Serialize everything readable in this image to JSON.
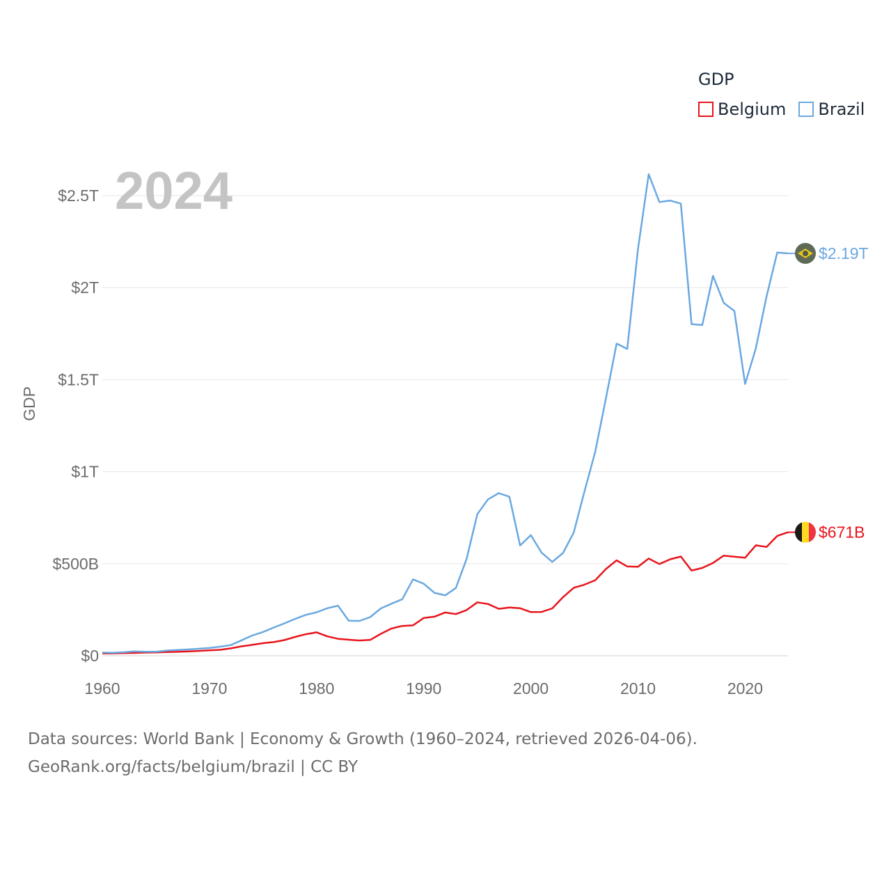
{
  "legend": {
    "title": "GDP",
    "items": [
      "Belgium",
      "Brazil"
    ]
  },
  "sources": {
    "line1": "Data sources: World Bank | Economy & Growth (1960–2024, retrieved 2026-04-06).",
    "line2": "GeoRank.org/facts/belgium/brazil | CC BY"
  },
  "chart_data": {
    "type": "line",
    "title": "",
    "year_label": "2024",
    "xlabel": "",
    "ylabel": "GDP",
    "xlim": [
      1960,
      2024
    ],
    "ylim": [
      0,
      2.5
    ],
    "unit": "trillion USD",
    "x_ticks": [
      1960,
      1970,
      1980,
      1990,
      2000,
      2010,
      2020
    ],
    "y_ticks": [
      {
        "value": 0,
        "label": "$0"
      },
      {
        "value": 0.5,
        "label": "$500B"
      },
      {
        "value": 1,
        "label": "$1T"
      },
      {
        "value": 1.5,
        "label": "$1.5T"
      },
      {
        "value": 2,
        "label": "$2T"
      },
      {
        "value": 2.5,
        "label": "$2.5T"
      }
    ],
    "x": [
      1960,
      1961,
      1962,
      1963,
      1964,
      1965,
      1966,
      1967,
      1968,
      1969,
      1970,
      1971,
      1972,
      1973,
      1974,
      1975,
      1976,
      1977,
      1978,
      1979,
      1980,
      1981,
      1982,
      1983,
      1984,
      1985,
      1986,
      1987,
      1988,
      1989,
      1990,
      1991,
      1992,
      1993,
      1994,
      1995,
      1996,
      1997,
      1998,
      1999,
      2000,
      2001,
      2002,
      2003,
      2004,
      2005,
      2006,
      2007,
      2008,
      2009,
      2010,
      2011,
      2012,
      2013,
      2014,
      2015,
      2016,
      2017,
      2018,
      2019,
      2020,
      2021,
      2022,
      2023,
      2024
    ],
    "series": [
      {
        "name": "Belgium",
        "color": "#e8141b",
        "end_label": "$671B",
        "values": [
          0.012,
          0.013,
          0.014,
          0.015,
          0.017,
          0.018,
          0.02,
          0.021,
          0.023,
          0.026,
          0.029,
          0.032,
          0.04,
          0.051,
          0.059,
          0.068,
          0.074,
          0.085,
          0.102,
          0.117,
          0.127,
          0.105,
          0.092,
          0.087,
          0.083,
          0.086,
          0.119,
          0.148,
          0.162,
          0.165,
          0.205,
          0.212,
          0.235,
          0.226,
          0.248,
          0.29,
          0.281,
          0.255,
          0.262,
          0.258,
          0.237,
          0.238,
          0.257,
          0.318,
          0.369,
          0.386,
          0.41,
          0.471,
          0.518,
          0.485,
          0.483,
          0.528,
          0.498,
          0.524,
          0.539,
          0.463,
          0.477,
          0.504,
          0.544,
          0.538,
          0.532,
          0.6,
          0.591,
          0.651,
          0.671
        ]
      },
      {
        "name": "Brazil",
        "color": "#6aa8e0",
        "end_label": "$2.19T",
        "values": [
          0.017,
          0.016,
          0.019,
          0.024,
          0.022,
          0.022,
          0.028,
          0.031,
          0.034,
          0.038,
          0.042,
          0.049,
          0.058,
          0.084,
          0.11,
          0.129,
          0.153,
          0.176,
          0.2,
          0.222,
          0.236,
          0.258,
          0.272,
          0.19,
          0.189,
          0.21,
          0.257,
          0.283,
          0.307,
          0.415,
          0.391,
          0.342,
          0.328,
          0.368,
          0.526,
          0.769,
          0.85,
          0.883,
          0.864,
          0.599,
          0.655,
          0.56,
          0.51,
          0.558,
          0.669,
          0.892,
          1.107,
          1.397,
          1.696,
          1.667,
          2.209,
          2.616,
          2.465,
          2.473,
          2.456,
          1.802,
          1.797,
          2.064,
          1.917,
          1.873,
          1.476,
          1.67,
          1.952,
          2.191,
          2.186
        ]
      }
    ]
  }
}
